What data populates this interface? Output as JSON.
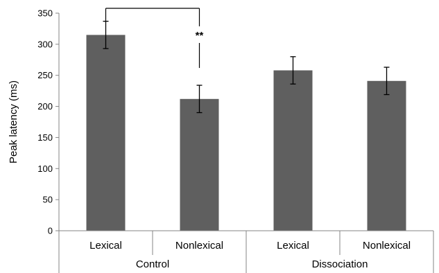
{
  "chart_data": {
    "type": "bar",
    "ylabel": "Peak latency (ms)",
    "ylim": [
      0,
      350
    ],
    "yticks": [
      0,
      50,
      100,
      150,
      200,
      250,
      300,
      350
    ],
    "grid": false,
    "legend": "none",
    "bar_color": "#5f5f5f",
    "groups": [
      "Control",
      "Dissociation"
    ],
    "categories": [
      "Lexical",
      "Nonlexical",
      "Lexical",
      "Nonlexical"
    ],
    "category_group": [
      0,
      0,
      1,
      1
    ],
    "values": [
      315,
      212,
      258,
      241
    ],
    "errors": [
      22,
      22,
      22,
      22
    ],
    "significance": {
      "from_index": 0,
      "to_index": 1,
      "label": "**"
    }
  }
}
